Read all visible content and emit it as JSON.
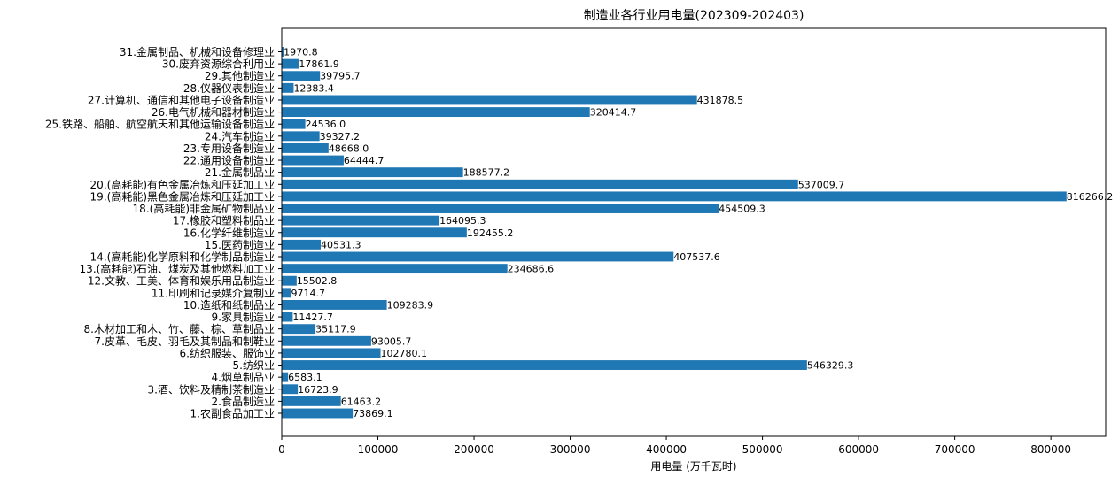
{
  "chart_data": {
    "type": "bar",
    "orientation": "horizontal",
    "title": "制造业各行业用电量(202309-202403)",
    "xlabel": "用电量 (万千瓦时)",
    "ylabel": "",
    "xlim": [
      0,
      857000
    ],
    "xticks": [
      0,
      100000,
      200000,
      300000,
      400000,
      500000,
      600000,
      700000,
      800000
    ],
    "grid": false,
    "bar_color": "#1f77b4",
    "categories": [
      "1.农副食品加工业",
      "2.食品制造业",
      "3.酒、饮料及精制茶制造业",
      "4.烟草制品业",
      "5.纺织业",
      "6.纺织服装、服饰业",
      "7.皮革、毛皮、羽毛及其制品和制鞋业",
      "8.木材加工和木、竹、藤、棕、草制品业",
      "9.家具制造业",
      "10.造纸和纸制品业",
      "11.印刷和记录媒介复制业",
      "12.文教、工美、体育和娱乐用品制造业",
      "13.(高耗能)石油、煤炭及其他燃料加工业",
      "14.(高耗能)化学原料和化学制品制造业",
      "15.医药制造业",
      "16.化学纤维制造业",
      "17.橡胶和塑料制品业",
      "18.(高耗能)非金属矿物制品业",
      "19.(高耗能)黑色金属冶炼和压延加工业",
      "20.(高耗能)有色金属冶炼和压延加工业",
      "21.金属制品业",
      "22.通用设备制造业",
      "23.专用设备制造业",
      "24.汽车制造业",
      "25.铁路、船舶、航空航天和其他运输设备制造业",
      "26.电气机械和器材制造业",
      "27.计算机、通信和其他电子设备制造业",
      "28.仪器仪表制造业",
      "29.其他制造业",
      "30.废弃资源综合利用业",
      "31.金属制品、机械和设备修理业"
    ],
    "values": [
      73869.1,
      61463.2,
      16723.9,
      6583.1,
      546329.3,
      102780.1,
      93005.7,
      35117.9,
      11427.7,
      109283.9,
      9714.7,
      15502.8,
      234686.6,
      407537.6,
      40531.3,
      192455.2,
      164095.3,
      454509.3,
      816266.2,
      537009.7,
      188577.2,
      64444.7,
      48668.0,
      39327.2,
      24536.0,
      320414.7,
      431878.5,
      12383.4,
      39795.7,
      17861.9,
      1970.8
    ],
    "value_labels": [
      "73869.1",
      "61463.2",
      "16723.9",
      "6583.1",
      "546329.3",
      "102780.1",
      "93005.7",
      "35117.9",
      "11427.7",
      "109283.9",
      "9714.7",
      "15502.8",
      "234686.6",
      "407537.6",
      "40531.3",
      "192455.2",
      "164095.3",
      "454509.3",
      "816266.2",
      "537009.7",
      "188577.2",
      "64444.7",
      "48668.0",
      "39327.2",
      "24536.0",
      "320414.7",
      "431878.5",
      "12383.4",
      "39795.7",
      "17861.9",
      "1970.8"
    ]
  }
}
